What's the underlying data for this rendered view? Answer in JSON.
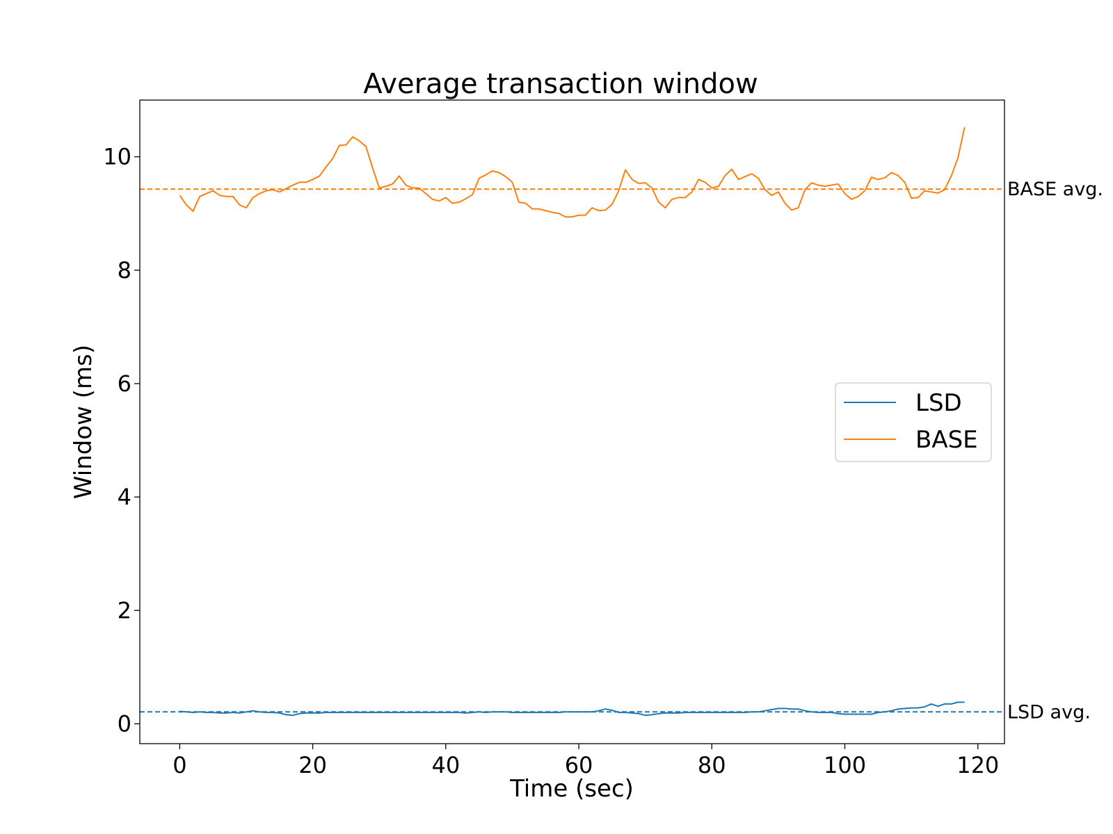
{
  "chart_data": {
    "type": "line",
    "title": "Average transaction window",
    "xlabel": "Time (sec)",
    "ylabel": "Window (ms)",
    "xlim": [
      -6,
      124
    ],
    "ylim": [
      -0.35,
      11.0
    ],
    "xticks": [
      0,
      20,
      40,
      60,
      80,
      100,
      120
    ],
    "yticks": [
      0,
      2,
      4,
      6,
      8,
      10
    ],
    "grid": false,
    "legend_position": "center-right",
    "series": [
      {
        "name": "LSD",
        "color": "#1f77b4",
        "x": [
          0,
          1,
          2,
          3,
          4,
          5,
          6,
          7,
          8,
          9,
          10,
          11,
          12,
          13,
          14,
          15,
          16,
          17,
          18,
          19,
          20,
          21,
          22,
          23,
          24,
          25,
          26,
          27,
          28,
          29,
          30,
          31,
          32,
          33,
          34,
          35,
          36,
          37,
          38,
          39,
          40,
          41,
          42,
          43,
          44,
          45,
          46,
          47,
          48,
          49,
          50,
          51,
          52,
          53,
          54,
          55,
          56,
          57,
          58,
          59,
          60,
          61,
          62,
          63,
          64,
          65,
          66,
          67,
          68,
          69,
          70,
          71,
          72,
          73,
          74,
          75,
          76,
          77,
          78,
          79,
          80,
          81,
          82,
          83,
          84,
          85,
          86,
          87,
          88,
          89,
          90,
          91,
          92,
          93,
          94,
          95,
          96,
          97,
          98,
          99,
          100,
          101,
          102,
          103,
          104,
          105,
          106,
          107,
          108,
          109,
          110,
          111,
          112,
          113,
          114,
          115,
          116,
          117,
          118
        ],
        "y": [
          0.22,
          0.21,
          0.2,
          0.21,
          0.2,
          0.2,
          0.19,
          0.19,
          0.2,
          0.19,
          0.21,
          0.23,
          0.21,
          0.2,
          0.2,
          0.19,
          0.16,
          0.15,
          0.18,
          0.19,
          0.19,
          0.19,
          0.2,
          0.2,
          0.2,
          0.2,
          0.2,
          0.2,
          0.2,
          0.2,
          0.2,
          0.2,
          0.2,
          0.2,
          0.2,
          0.2,
          0.2,
          0.2,
          0.2,
          0.2,
          0.2,
          0.2,
          0.2,
          0.19,
          0.2,
          0.21,
          0.2,
          0.21,
          0.21,
          0.21,
          0.2,
          0.2,
          0.2,
          0.2,
          0.2,
          0.2,
          0.2,
          0.2,
          0.21,
          0.21,
          0.21,
          0.21,
          0.21,
          0.23,
          0.26,
          0.24,
          0.2,
          0.2,
          0.19,
          0.18,
          0.15,
          0.16,
          0.18,
          0.19,
          0.19,
          0.19,
          0.2,
          0.2,
          0.2,
          0.2,
          0.2,
          0.2,
          0.2,
          0.2,
          0.2,
          0.2,
          0.21,
          0.21,
          0.23,
          0.25,
          0.27,
          0.27,
          0.26,
          0.26,
          0.23,
          0.21,
          0.2,
          0.2,
          0.2,
          0.18,
          0.17,
          0.17,
          0.17,
          0.17,
          0.17,
          0.2,
          0.21,
          0.23,
          0.26,
          0.27,
          0.28,
          0.28,
          0.3,
          0.35,
          0.31,
          0.35,
          0.35,
          0.38,
          0.38
        ]
      },
      {
        "name": "BASE",
        "color": "#ff7f0e",
        "x": [
          0,
          1,
          2,
          3,
          4,
          5,
          6,
          7,
          8,
          9,
          10,
          11,
          12,
          13,
          14,
          15,
          16,
          17,
          18,
          19,
          20,
          21,
          22,
          23,
          24,
          25,
          26,
          27,
          28,
          29,
          30,
          31,
          32,
          33,
          34,
          35,
          36,
          37,
          38,
          39,
          40,
          41,
          42,
          43,
          44,
          45,
          46,
          47,
          48,
          49,
          50,
          51,
          52,
          53,
          54,
          55,
          56,
          57,
          58,
          59,
          60,
          61,
          62,
          63,
          64,
          65,
          66,
          67,
          68,
          69,
          70,
          71,
          72,
          73,
          74,
          75,
          76,
          77,
          78,
          79,
          80,
          81,
          82,
          83,
          84,
          85,
          86,
          87,
          88,
          89,
          90,
          91,
          92,
          93,
          94,
          95,
          96,
          97,
          98,
          99,
          100,
          101,
          102,
          103,
          104,
          105,
          106,
          107,
          108,
          109,
          110,
          111,
          112,
          113,
          114,
          115,
          116,
          117,
          118
        ],
        "y": [
          9.32,
          9.15,
          9.04,
          9.3,
          9.35,
          9.4,
          9.32,
          9.3,
          9.3,
          9.15,
          9.1,
          9.28,
          9.35,
          9.4,
          9.42,
          9.38,
          9.44,
          9.5,
          9.55,
          9.55,
          9.6,
          9.66,
          9.82,
          9.97,
          10.2,
          10.21,
          10.35,
          10.28,
          10.18,
          9.8,
          9.45,
          9.48,
          9.52,
          9.66,
          9.5,
          9.45,
          9.45,
          9.35,
          9.25,
          9.22,
          9.28,
          9.18,
          9.2,
          9.26,
          9.33,
          9.62,
          9.68,
          9.75,
          9.72,
          9.65,
          9.55,
          9.2,
          9.18,
          9.08,
          9.08,
          9.05,
          9.02,
          9.0,
          8.94,
          8.94,
          8.97,
          8.97,
          9.1,
          9.05,
          9.06,
          9.16,
          9.4,
          9.77,
          9.6,
          9.53,
          9.54,
          9.45,
          9.2,
          9.1,
          9.25,
          9.28,
          9.28,
          9.38,
          9.6,
          9.55,
          9.45,
          9.48,
          9.67,
          9.78,
          9.6,
          9.65,
          9.7,
          9.62,
          9.42,
          9.32,
          9.38,
          9.18,
          9.06,
          9.1,
          9.42,
          9.54,
          9.5,
          9.48,
          9.5,
          9.52,
          9.35,
          9.25,
          9.3,
          9.4,
          9.64,
          9.6,
          9.63,
          9.72,
          9.67,
          9.55,
          9.27,
          9.28,
          9.4,
          9.38,
          9.36,
          9.42,
          9.66,
          9.98,
          10.52
        ]
      }
    ],
    "reference_lines": [
      {
        "label": "BASE avg.",
        "y": 9.43,
        "color": "#ff7f0e",
        "style": "dashed"
      },
      {
        "label": "LSD avg.",
        "y": 0.21,
        "color": "#1f77b4",
        "style": "dashed"
      }
    ]
  }
}
